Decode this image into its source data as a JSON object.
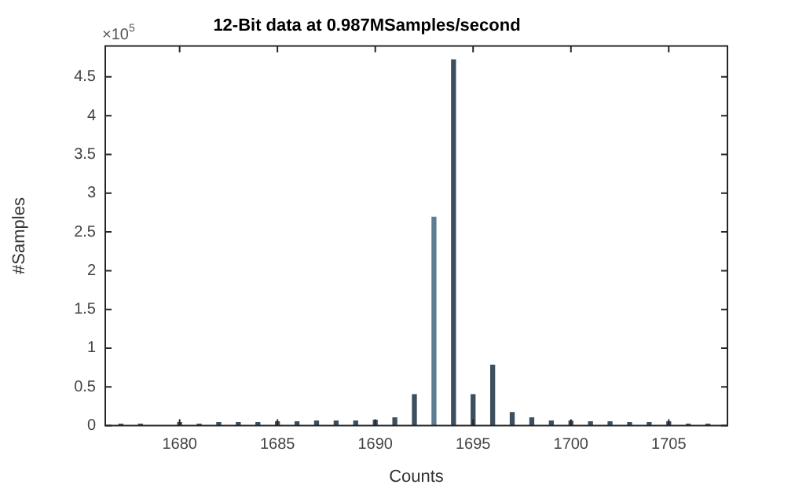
{
  "chart_data": {
    "type": "bar",
    "title": "12-Bit data at 0.987MSamples/second",
    "xlabel": "Counts",
    "ylabel": "#Samples",
    "annotations": [
      "×10$^{5}$"
    ],
    "x": [
      1677,
      1678,
      1680,
      1681,
      1682,
      1683,
      1684,
      1685,
      1686,
      1687,
      1688,
      1689,
      1690,
      1691,
      1692,
      1693,
      1694,
      1695,
      1696,
      1697,
      1698,
      1699,
      1700,
      1701,
      1702,
      1703,
      1704,
      1705,
      1706,
      1707
    ],
    "values": [
      0.02,
      0.02,
      0.04,
      0.02,
      0.04,
      0.04,
      0.04,
      0.05,
      0.05,
      0.06,
      0.06,
      0.06,
      0.07,
      0.1,
      0.4,
      2.69,
      4.72,
      0.4,
      0.78,
      0.17,
      0.1,
      0.06,
      0.06,
      0.05,
      0.05,
      0.04,
      0.04,
      0.05,
      0.02,
      0.02
    ],
    "colors": [
      "#3d4f5e",
      "#3d4f5e",
      "#3d4f5e",
      "#3d4f5e",
      "#3d4f5e",
      "#3d4f5e",
      "#3d4f5e",
      "#3d4f5e",
      "#3d4f5e",
      "#3d4f5e",
      "#3d4f5e",
      "#3d4f5e",
      "#3d4f5e",
      "#3d4f5e",
      "#3d4f5e",
      "#5f7d92",
      "#3d4f5e",
      "#3d4f5e",
      "#3d4f5e",
      "#3d4f5e",
      "#3d4f5e",
      "#3d4f5e",
      "#3d4f5e",
      "#3d4f5e",
      "#3d4f5e",
      "#3d4f5e",
      "#3d4f5e",
      "#3d4f5e",
      "#3d4f5e",
      "#3d4f5e"
    ],
    "xlim": [
      1676.2,
      1708
    ],
    "xticks": [
      1680,
      1685,
      1690,
      1695,
      1700,
      1705
    ],
    "ylim": [
      0,
      4.9
    ],
    "yticks": [
      0,
      0.5,
      1,
      1.5,
      2,
      2.5,
      3,
      3.5,
      4,
      4.5
    ],
    "legend": false
  }
}
